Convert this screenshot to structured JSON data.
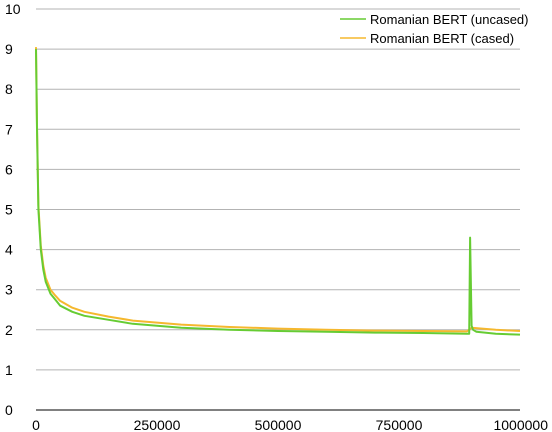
{
  "chart_data": {
    "type": "line",
    "title": "",
    "xlabel": "",
    "ylabel": "",
    "xlim": [
      0,
      1000000
    ],
    "ylim": [
      0,
      10
    ],
    "x_ticks": [
      0,
      250000,
      500000,
      750000,
      1000000
    ],
    "x_tick_labels": [
      "0",
      "250000",
      "500000",
      "750000",
      "1000000"
    ],
    "y_ticks": [
      0,
      1,
      2,
      3,
      4,
      5,
      6,
      7,
      8,
      9,
      10
    ],
    "y_tick_labels": [
      "0",
      "1",
      "2",
      "3",
      "4",
      "5",
      "6",
      "7",
      "8",
      "9",
      "10"
    ],
    "grid": "horizontal",
    "legend": "top-right",
    "series": [
      {
        "name": "Romanian BERT (uncased)",
        "color": "#66cc33",
        "x": [
          0,
          2000,
          5000,
          10000,
          15000,
          20000,
          30000,
          40000,
          50000,
          75000,
          100000,
          150000,
          200000,
          250000,
          300000,
          400000,
          500000,
          600000,
          700000,
          800000,
          890000,
          895000,
          897000,
          900000,
          903000,
          910000,
          950000,
          1000000
        ],
        "y": [
          9.0,
          7.0,
          5.0,
          4.0,
          3.5,
          3.2,
          2.9,
          2.75,
          2.6,
          2.45,
          2.35,
          2.25,
          2.15,
          2.1,
          2.05,
          2.0,
          1.97,
          1.95,
          1.93,
          1.92,
          1.9,
          1.9,
          4.3,
          2.1,
          2.0,
          1.95,
          1.9,
          1.88
        ]
      },
      {
        "name": "Romanian BERT (cased)",
        "color": "#f5b82e",
        "x": [
          0,
          2000,
          5000,
          10000,
          15000,
          20000,
          30000,
          40000,
          50000,
          75000,
          100000,
          150000,
          200000,
          250000,
          300000,
          400000,
          500000,
          600000,
          700000,
          800000,
          890000,
          900000,
          950000,
          1000000
        ],
        "y": [
          9.05,
          7.1,
          5.1,
          4.1,
          3.6,
          3.3,
          3.0,
          2.85,
          2.72,
          2.55,
          2.45,
          2.33,
          2.23,
          2.18,
          2.13,
          2.07,
          2.03,
          2.0,
          1.98,
          1.97,
          1.96,
          2.05,
          2.0,
          1.97
        ]
      }
    ]
  }
}
